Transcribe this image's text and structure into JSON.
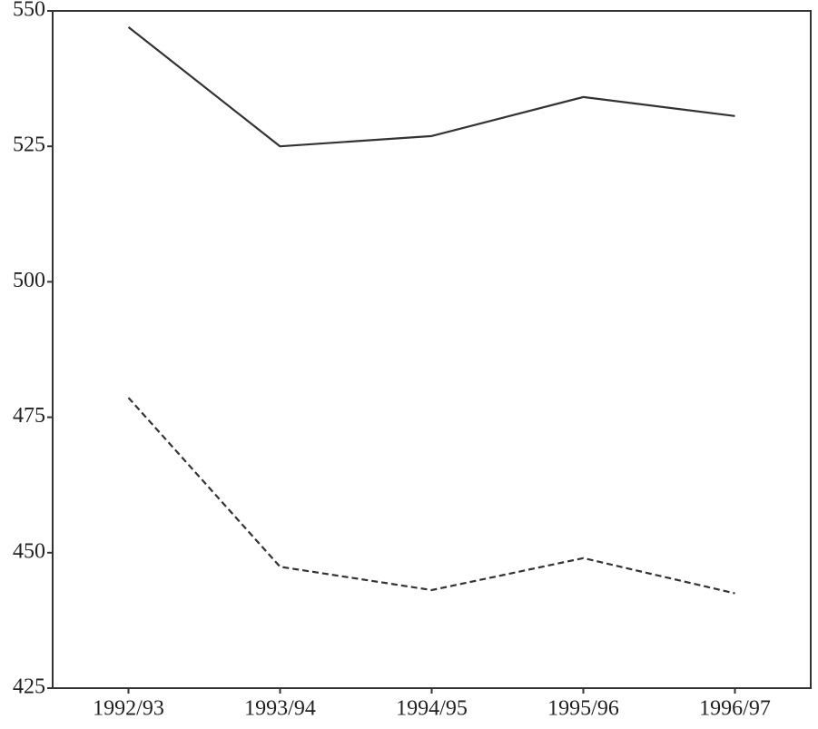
{
  "chart_data": {
    "type": "line",
    "categories": [
      "1992/93",
      "1993/94",
      "1994/95",
      "1995/96",
      "1996/97"
    ],
    "series": [
      {
        "color": "#333333",
        "dashed": false,
        "values": [
          547.0,
          525.0,
          526.9,
          534.1,
          530.6
        ]
      },
      {
        "color": "#333333",
        "dashed": true,
        "values": [
          478.6,
          447.4,
          443.1,
          449.0,
          442.5
        ]
      }
    ],
    "ylim": [
      425,
      550
    ],
    "yticks": [
      425,
      450,
      475,
      500,
      525,
      550
    ],
    "grid": false
  }
}
